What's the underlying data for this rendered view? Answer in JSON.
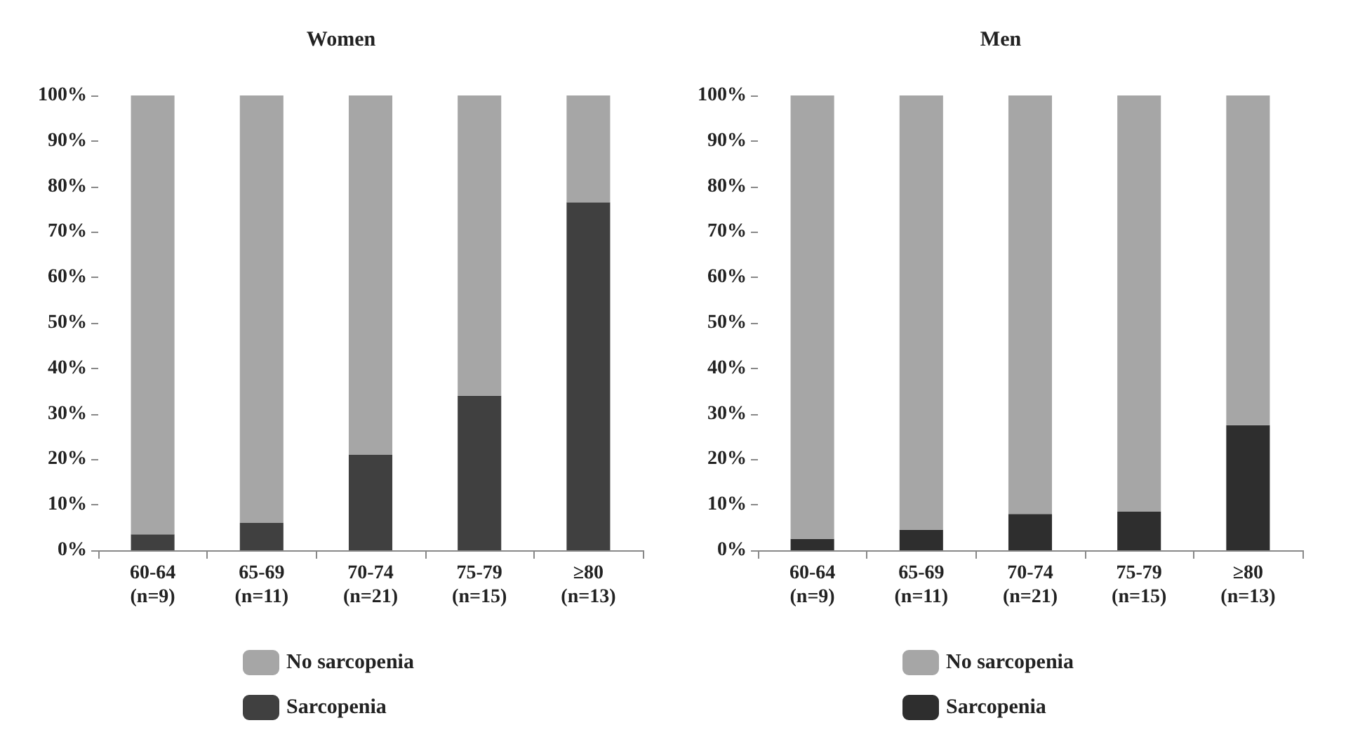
{
  "chart_data": [
    {
      "type": "bar",
      "title": "Women",
      "categories": [
        "60-64\n(n=9)",
        "65-69\n(n=11)",
        "70-74\n(n=21)",
        "75-79\n(n=15)",
        "≥80\n(n=13)"
      ],
      "stacked": true,
      "series": [
        {
          "name": "Sarcopenia",
          "color": "#404040",
          "values": [
            3.5,
            6,
            21,
            34,
            76.5
          ]
        },
        {
          "name": "No sarcopenia",
          "color": "#a6a6a6",
          "values": [
            96.5,
            94,
            79,
            66,
            23.5
          ]
        }
      ],
      "ylim": [
        0,
        100
      ],
      "yticks": [
        {
          "value": 0,
          "label": "0%"
        },
        {
          "value": 10,
          "label": "10%"
        },
        {
          "value": 20,
          "label": "20%"
        },
        {
          "value": 30,
          "label": "30%"
        },
        {
          "value": 40,
          "label": "40%"
        },
        {
          "value": 50,
          "label": "50%"
        },
        {
          "value": 60,
          "label": "60%"
        },
        {
          "value": 70,
          "label": "70%"
        },
        {
          "value": 80,
          "label": "80%"
        },
        {
          "value": 90,
          "label": "90%"
        },
        {
          "value": 100,
          "label": "100%"
        }
      ],
      "grid": false,
      "legend": "bottom"
    },
    {
      "type": "bar",
      "title": "Men",
      "categories": [
        "60-64\n(n=9)",
        "65-69\n(n=11)",
        "70-74\n(n=21)",
        "75-79\n(n=15)",
        "≥80\n(n=13)"
      ],
      "stacked": true,
      "series": [
        {
          "name": "Sarcopenia",
          "color": "#2e2e2e",
          "values": [
            2.5,
            4.5,
            8,
            8.5,
            27.5
          ]
        },
        {
          "name": "No sarcopenia",
          "color": "#a6a6a6",
          "values": [
            97.5,
            95.5,
            92,
            91.5,
            72.5
          ]
        }
      ],
      "ylim": [
        0,
        100
      ],
      "yticks": [
        {
          "value": 0,
          "label": "0%"
        },
        {
          "value": 10,
          "label": "10%"
        },
        {
          "value": 20,
          "label": "20%"
        },
        {
          "value": 30,
          "label": "30%"
        },
        {
          "value": 40,
          "label": "40%"
        },
        {
          "value": 50,
          "label": "50%"
        },
        {
          "value": 60,
          "label": "60%"
        },
        {
          "value": 70,
          "label": "70%"
        },
        {
          "value": 80,
          "label": "80%"
        },
        {
          "value": 90,
          "label": "90%"
        },
        {
          "value": 100,
          "label": "100%"
        }
      ],
      "grid": false,
      "legend": "bottom"
    }
  ]
}
